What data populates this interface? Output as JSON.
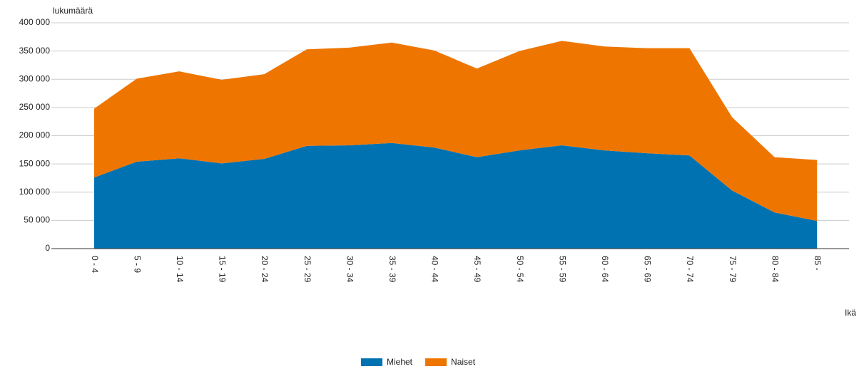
{
  "chart_data": {
    "type": "area",
    "stacked": true,
    "y_label": "lukumäärä",
    "x_label": "Ikä",
    "categories": [
      "0 - 4",
      "5 - 9",
      "10 - 14",
      "15 - 19",
      "20 - 24",
      "25 - 29",
      "30 - 34",
      "35 - 39",
      "40 - 44",
      "45 - 49",
      "50 - 54",
      "55 - 59",
      "60 - 64",
      "65 - 69",
      "70 - 74",
      "75 - 79",
      "80 - 84",
      "85 -"
    ],
    "series": [
      {
        "name": "Miehet",
        "color": "#0072b2",
        "values": [
          126000,
          154000,
          160000,
          151000,
          159000,
          182000,
          183000,
          187000,
          179000,
          162000,
          174000,
          183000,
          174000,
          169000,
          165000,
          103000,
          64000,
          49000
        ]
      },
      {
        "name": "Naiset",
        "color": "#ee7600",
        "values": [
          122000,
          147000,
          154000,
          148000,
          150000,
          171000,
          173000,
          178000,
          172000,
          157000,
          176000,
          185000,
          184000,
          186000,
          190000,
          130000,
          98000,
          108000
        ]
      }
    ],
    "ylim": [
      0,
      400000
    ],
    "yticks": [
      0,
      {
        "value": 50000,
        "label": "50 000"
      },
      {
        "value": 100000,
        "label": "100 000"
      },
      {
        "value": 150000,
        "label": "150 000"
      },
      {
        "value": 200000,
        "label": "200 000"
      },
      {
        "value": 250000,
        "label": "250 000"
      },
      {
        "value": 300000,
        "label": "300 000"
      },
      {
        "value": 350000,
        "label": "350 000"
      },
      {
        "value": 400000,
        "label": "400 000"
      }
    ],
    "grid": true,
    "legend": "bottom"
  }
}
